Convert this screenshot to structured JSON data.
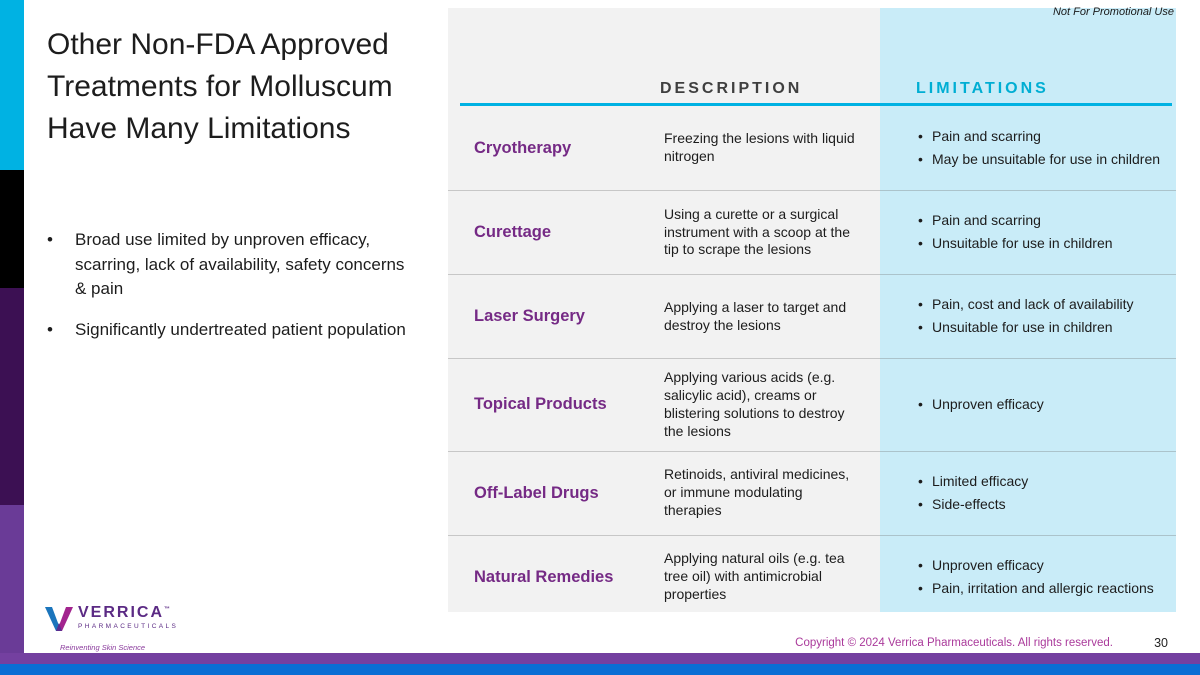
{
  "slide": {
    "title": "Other Non-FDA Approved Treatments for Molluscum Have Many Limitations",
    "bullets": [
      "Broad use limited by unproven efficacy, scarring, lack of availability, safety concerns & pain",
      "Significantly undertreated patient population"
    ],
    "promo_note": "Not For Promotional Use",
    "footer": {
      "copyright": "Copyright © 2024 Verrica Pharmaceuticals. All rights reserved.",
      "page_number": "30"
    },
    "logo": {
      "name": "VERRICA",
      "tm": "™",
      "sub": "PHARMACEUTICALS",
      "tagline": "Reinventing Skin Science"
    }
  },
  "table": {
    "headers": {
      "description": "DESCRIPTION",
      "limitations": "LIMITATIONS"
    },
    "rows": [
      {
        "treatment": "Cryotherapy",
        "description": "Freezing the lesions with liquid nitrogen",
        "limitations": [
          "Pain and scarring",
          "May be unsuitable for use in children"
        ]
      },
      {
        "treatment": "Curettage",
        "description": "Using a curette or a surgical instrument with a scoop at the tip to scrape the lesions",
        "limitations": [
          "Pain and scarring",
          "Unsuitable for use in children"
        ]
      },
      {
        "treatment": "Laser Surgery",
        "description": "Applying a laser to target and destroy the lesions",
        "limitations": [
          "Pain, cost and lack of availability",
          "Unsuitable for use in children"
        ]
      },
      {
        "treatment": "Topical Products",
        "description": "Applying various acids (e.g. salicylic acid), creams or blistering solutions to destroy the lesions",
        "limitations": [
          "Unproven efficacy"
        ]
      },
      {
        "treatment": "Off-Label Drugs",
        "description": "Retinoids, antiviral medicines, or immune modulating therapies",
        "limitations": [
          "Limited efficacy",
          "Side-effects"
        ]
      },
      {
        "treatment": "Natural Remedies",
        "description": "Applying natural oils (e.g. tea tree oil) with antimicrobial properties",
        "limitations": [
          "Unproven efficacy",
          "Pain, irritation and allergic reactions"
        ]
      }
    ]
  },
  "colors": {
    "accent_cyan": "#00b2e3",
    "limitations_header": "#00aed3",
    "limitations_bg": "#c9ecf8",
    "description_bg": "#f2f2f2",
    "treatment_purple": "#752a85",
    "stripe_dark_purple": "#3c1053",
    "stripe_medium_purple": "#6a3b97",
    "bottom_bar_purple": "#7440a0",
    "bottom_bar_blue": "#0a6ed4",
    "copyright_magenta": "#aa3a9b"
  }
}
